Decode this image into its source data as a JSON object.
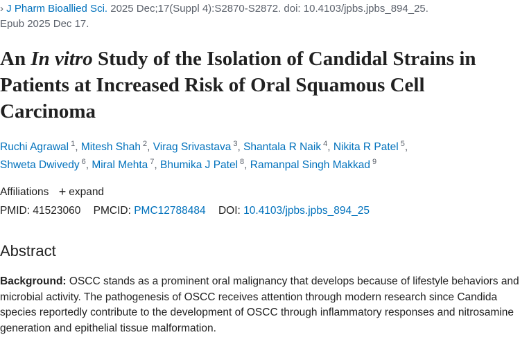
{
  "citation": {
    "prefix": "›",
    "journal": "J Pharm Bioallied Sci.",
    "details": " 2025 Dec;17(Suppl 4):S2870-S2872. doi: 10.4103/jpbs.jpbs_894_25.",
    "epub": "Epub 2025 Dec 17."
  },
  "title": {
    "part1": "An ",
    "italic": "In vitro",
    "part2": " Study of the Isolation of Candidal Strains in Patients at Increased Risk of Oral Squamous Cell Carcinoma"
  },
  "authors": [
    {
      "name": "Ruchi Agrawal",
      "aff": "1"
    },
    {
      "name": "Mitesh Shah",
      "aff": "2"
    },
    {
      "name": "Virag Srivastava",
      "aff": "3"
    },
    {
      "name": "Shantala R Naik",
      "aff": "4"
    },
    {
      "name": "Nikita R Patel",
      "aff": "5"
    },
    {
      "name": "Shweta Dwivedy",
      "aff": "6"
    },
    {
      "name": "Miral Mehta",
      "aff": "7"
    },
    {
      "name": "Bhumika J Patel",
      "aff": "8"
    },
    {
      "name": "Ramanpal Singh Makkad",
      "aff": "9"
    }
  ],
  "affiliations": {
    "label": "Affiliations",
    "expand_icon": "+",
    "expand_label": "expand"
  },
  "identifiers": {
    "pmid_label": "PMID:",
    "pmid": "41523060",
    "pmcid_label": "PMCID:",
    "pmcid": "PMC12788484",
    "doi_label": "DOI:",
    "doi": "10.4103/jpbs.jpbs_894_25"
  },
  "abstract": {
    "heading": "Abstract",
    "background_label": "Background:",
    "background_text": " OSCC stands as a prominent oral malignancy that develops because of lifestyle behaviors and microbial activity. The pathogenesis of OSCC receives attention through modern research since Candida species reportedly contribute to the development of OSCC through inflammatory responses and nitrosamine generation and epithelial tissue malformation."
  }
}
